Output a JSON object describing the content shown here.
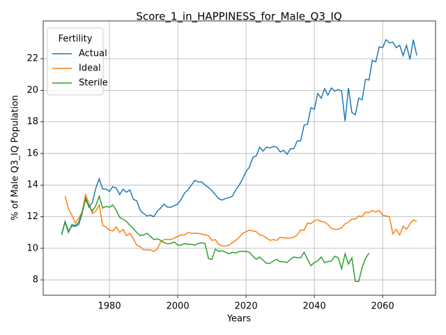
{
  "chart_data": {
    "type": "line",
    "title": "Score_1_in_HAPPINESS_for_Male_Q3_IQ",
    "xlabel": "Years",
    "ylabel": "% of Male Q3_IQ Population",
    "x": [
      1966,
      1967,
      1968,
      1969,
      1970,
      1971,
      1972,
      1973,
      1974,
      1975,
      1976,
      1977,
      1978,
      1979,
      1980,
      1981,
      1982,
      1983,
      1984,
      1985,
      1986,
      1987,
      1988,
      1989,
      1990,
      1991,
      1992,
      1993,
      1994,
      1995,
      1996,
      1997,
      1998,
      1999,
      2000,
      2001,
      2002,
      2003,
      2004,
      2005,
      2006,
      2007,
      2008,
      2009,
      2010,
      2011,
      2012,
      2013,
      2014,
      2015,
      2016,
      2017,
      2018,
      2019,
      2020,
      2021,
      2022,
      2023,
      2024,
      2025,
      2026,
      2027,
      2028,
      2029,
      2030,
      2031,
      2032,
      2033,
      2034,
      2035,
      2036,
      2037,
      2038,
      2039,
      2040,
      2041,
      2042,
      2043,
      2044,
      2045,
      2046,
      2047,
      2048,
      2049,
      2050,
      2051,
      2052,
      2053,
      2054,
      2055,
      2056,
      2057,
      2058,
      2059,
      2060,
      2061,
      2062,
      2063,
      2064,
      2065,
      2066,
      2067,
      2068,
      2069,
      2070
    ],
    "series": [
      {
        "name": "Actual",
        "color": "#1f77b4",
        "values": [
          10.9,
          11.7,
          11.1,
          11.4,
          11.4,
          11.5,
          12.2,
          13.2,
          12.6,
          12.9,
          13.8,
          14.4,
          13.75,
          13.75,
          13.6,
          13.9,
          13.8,
          13.4,
          13.75,
          13.55,
          13.7,
          13.1,
          13.0,
          12.4,
          12.2,
          12.05,
          12.1,
          12.0,
          12.35,
          12.55,
          12.8,
          12.6,
          12.6,
          12.7,
          12.8,
          13.1,
          13.5,
          13.7,
          14.0,
          14.3,
          14.2,
          14.2,
          14.0,
          13.85,
          13.65,
          13.4,
          13.15,
          13.05,
          13.15,
          13.2,
          13.3,
          13.7,
          14.0,
          14.4,
          14.85,
          15.15,
          15.75,
          15.85,
          16.4,
          16.15,
          16.4,
          16.35,
          16.45,
          16.4,
          16.1,
          16.2,
          15.95,
          16.3,
          16.3,
          16.8,
          16.8,
          17.8,
          17.85,
          18.9,
          18.8,
          19.8,
          19.5,
          20.1,
          19.7,
          20.15,
          19.95,
          20.05,
          19.95,
          18.05,
          20.15,
          18.6,
          18.45,
          19.5,
          19.4,
          20.7,
          20.65,
          21.9,
          21.8,
          22.75,
          22.7,
          23.2,
          23.0,
          23.05,
          22.7,
          22.85,
          22.2,
          22.85,
          21.95,
          23.2,
          22.2
        ]
      },
      {
        "name": "Ideal",
        "color": "#ff7f0e",
        "values": [
          null,
          13.3,
          12.5,
          12.1,
          11.6,
          11.9,
          12.3,
          13.4,
          12.8,
          12.2,
          12.35,
          12.75,
          11.45,
          11.35,
          11.15,
          11.1,
          11.35,
          11.0,
          11.2,
          10.8,
          10.95,
          10.6,
          10.2,
          10.1,
          9.9,
          9.9,
          9.9,
          9.8,
          9.95,
          10.4,
          10.55,
          10.55,
          10.55,
          10.65,
          10.75,
          10.85,
          10.85,
          11.0,
          10.95,
          10.95,
          10.95,
          10.9,
          10.85,
          10.8,
          10.5,
          10.55,
          10.25,
          10.15,
          10.15,
          10.2,
          10.35,
          10.5,
          10.7,
          10.95,
          11.05,
          11.15,
          11.1,
          11.05,
          10.85,
          10.8,
          10.65,
          10.5,
          10.55,
          10.5,
          10.7,
          10.65,
          10.65,
          10.65,
          10.7,
          10.85,
          11.15,
          11.15,
          11.6,
          11.55,
          11.75,
          11.8,
          11.7,
          11.65,
          11.5,
          11.25,
          11.2,
          11.2,
          11.3,
          11.55,
          11.65,
          11.85,
          11.85,
          12.05,
          12.0,
          12.3,
          12.25,
          12.4,
          12.3,
          12.4,
          12.1,
          12.05,
          12.0,
          10.9,
          11.2,
          10.85,
          11.4,
          11.2,
          11.55,
          11.8,
          11.7
        ]
      },
      {
        "name": "Sterile",
        "color": "#2ca02c",
        "values": [
          10.85,
          11.65,
          11.0,
          11.5,
          11.45,
          11.65,
          12.3,
          13.05,
          12.7,
          12.35,
          12.7,
          13.3,
          12.55,
          12.65,
          12.6,
          12.75,
          12.4,
          11.95,
          11.85,
          11.7,
          11.45,
          11.25,
          11.0,
          10.8,
          10.85,
          10.95,
          10.75,
          10.55,
          10.6,
          10.5,
          10.35,
          10.3,
          10.3,
          10.4,
          10.2,
          10.2,
          10.3,
          10.25,
          10.25,
          10.2,
          10.3,
          10.35,
          10.3,
          9.35,
          9.3,
          9.95,
          9.8,
          9.85,
          9.75,
          9.65,
          9.75,
          9.7,
          9.8,
          9.8,
          9.8,
          9.75,
          9.5,
          9.3,
          9.45,
          9.25,
          9.05,
          9.05,
          9.2,
          9.3,
          9.15,
          9.15,
          9.1,
          9.3,
          9.45,
          9.4,
          9.4,
          9.75,
          9.3,
          8.9,
          9.1,
          9.2,
          9.45,
          9.1,
          9.15,
          9.2,
          9.5,
          9.4,
          8.7,
          9.65,
          9.0,
          9.4,
          7.9,
          7.9,
          8.8,
          9.35,
          9.7,
          null,
          null,
          null,
          null,
          null,
          null,
          null,
          null,
          null,
          null,
          null,
          null,
          null,
          null
        ]
      }
    ],
    "xlim": [
      1960.6,
      2075.5
    ],
    "ylim": [
      7.03,
      24.39
    ],
    "xticks": [
      1980,
      2000,
      2020,
      2040,
      2060
    ],
    "yticks": [
      8,
      10,
      12,
      14,
      16,
      18,
      20,
      22
    ],
    "grid": true,
    "legend_title": "Fertility",
    "legend": "upper left"
  }
}
